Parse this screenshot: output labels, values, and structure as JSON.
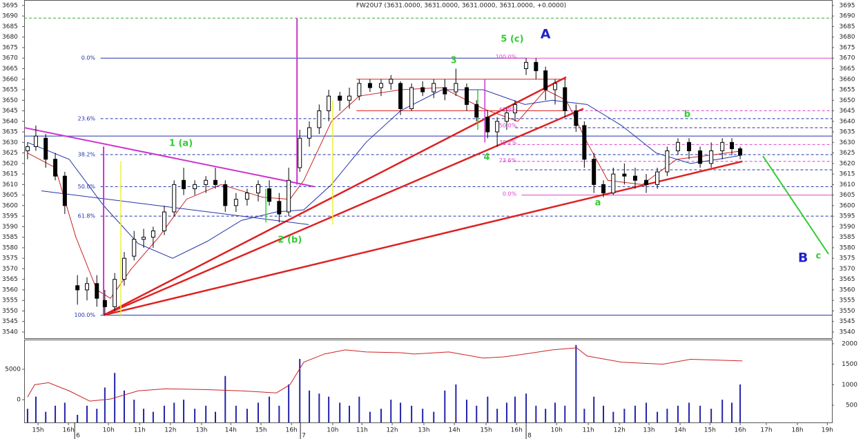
{
  "chart_data": [
    {
      "type": "candlestick",
      "title": "FW20U7 (3631.0000, 3631.0000, 3631.0000, 3631.0000, +0.0000)",
      "xlim": [
        -0.45,
        25.78
      ],
      "ylim": [
        3537.05,
        3697.6
      ],
      "yticks": [
        3540,
        3545,
        3550,
        3555,
        3560,
        3565,
        3570,
        3575,
        3580,
        3585,
        3590,
        3595,
        3600,
        3605,
        3610,
        3615,
        3620,
        3625,
        3630,
        3635,
        3640,
        3645,
        3650,
        3655,
        3660,
        3665,
        3670,
        3675,
        3680,
        3685,
        3690,
        3695
      ],
      "up_color": "#ffffff",
      "down_color": "#000000",
      "x": [
        -0.34,
        -0.07,
        0.25,
        0.56,
        0.87,
        1.28,
        1.59,
        1.91,
        2.17,
        2.49,
        2.8,
        3.12,
        3.43,
        3.74,
        4.1,
        4.42,
        4.73,
        5.09,
        5.45,
        5.76,
        6.08,
        6.43,
        6.79,
        7.15,
        7.51,
        7.83,
        8.14,
        8.5,
        8.81,
        9.13,
        9.44,
        9.8,
        10.11,
        10.43,
        10.78,
        11.14,
        11.46,
        11.77,
        12.13,
        12.49,
        12.85,
        13.21,
        13.57,
        13.92,
        14.24,
        14.6,
        14.91,
        15.22,
        15.49,
        15.85,
        16.17,
        16.48,
        16.79,
        17.11,
        17.47,
        17.74,
        18.05,
        18.36,
        18.68,
        19.04,
        19.39,
        19.75,
        20.11,
        20.43,
        20.78,
        21.14,
        21.5,
        21.86,
        22.22,
        22.53,
        22.8
      ],
      "open": [
        3626,
        3628,
        3632,
        3622,
        3614,
        3562,
        3560,
        3563,
        3555,
        3552,
        3565,
        3576,
        3584,
        3585,
        3588,
        3597,
        3612,
        3608,
        3610,
        3612,
        3610,
        3600,
        3603,
        3606,
        3608,
        3602,
        3597,
        3618,
        3632,
        3637,
        3645,
        3652,
        3650,
        3652,
        3658,
        3656,
        3658,
        3658,
        3646,
        3656,
        3654,
        3656,
        3654,
        3656,
        3648,
        3642,
        3635,
        3640,
        3644,
        3665,
        3668,
        3664,
        3655,
        3656,
        3645,
        3638,
        3622,
        3610,
        3606,
        3615,
        3614,
        3612,
        3610,
        3616,
        3626,
        3630,
        3626,
        3620,
        3626,
        3630,
        3627
      ],
      "high": [
        3630,
        3638,
        3634,
        3625,
        3616,
        3567,
        3566,
        3567,
        3560,
        3568,
        3578,
        3588,
        3589,
        3590,
        3600,
        3612,
        3618,
        3612,
        3614,
        3618,
        3612,
        3606,
        3608,
        3612,
        3612,
        3606,
        3618,
        3636,
        3640,
        3648,
        3655,
        3654,
        3656,
        3660,
        3660,
        3660,
        3662,
        3659,
        3658,
        3659,
        3660,
        3660,
        3665,
        3658,
        3650,
        3645,
        3642,
        3646,
        3650,
        3670,
        3670,
        3666,
        3660,
        3660,
        3648,
        3640,
        3625,
        3612,
        3618,
        3620,
        3618,
        3615,
        3618,
        3628,
        3632,
        3632,
        3628,
        3630,
        3632,
        3632,
        3628
      ],
      "low": [
        3622,
        3626,
        3618,
        3612,
        3596,
        3553,
        3555,
        3552,
        3548,
        3550,
        3562,
        3574,
        3580,
        3580,
        3586,
        3595,
        3605,
        3605,
        3606,
        3608,
        3597,
        3597,
        3600,
        3602,
        3600,
        3592,
        3595,
        3616,
        3628,
        3634,
        3640,
        3645,
        3646,
        3650,
        3654,
        3652,
        3655,
        3643,
        3645,
        3652,
        3651,
        3650,
        3652,
        3645,
        3640,
        3632,
        3628,
        3636,
        3640,
        3662,
        3660,
        3650,
        3648,
        3642,
        3635,
        3618,
        3606,
        3604,
        3605,
        3610,
        3608,
        3606,
        3608,
        3614,
        3624,
        3622,
        3618,
        3618,
        3622,
        3624,
        3622
      ],
      "close": [
        3628,
        3633,
        3622,
        3614,
        3600,
        3560,
        3563,
        3556,
        3552,
        3565,
        3575,
        3584,
        3585,
        3588,
        3597,
        3610,
        3608,
        3610,
        3612,
        3610,
        3600,
        3603,
        3606,
        3610,
        3602,
        3596,
        3612,
        3632,
        3637,
        3645,
        3652,
        3650,
        3652,
        3658,
        3656,
        3658,
        3660,
        3646,
        3656,
        3654,
        3658,
        3653,
        3658,
        3648,
        3642,
        3635,
        3640,
        3644,
        3648,
        3668,
        3664,
        3655,
        3658,
        3645,
        3638,
        3622,
        3610,
        3606,
        3615,
        3614,
        3612,
        3610,
        3616,
        3626,
        3630,
        3626,
        3620,
        3626,
        3630,
        3627,
        3624
      ],
      "overlays": [
        {
          "color": "#cc2222",
          "x": [
            -0.34,
            0.56,
            1.23,
            1.91,
            2.35,
            3.03,
            3.92,
            4.82,
            5.94,
            7.29,
            8.18,
            8.63,
            9.53,
            10.43,
            11.77,
            13.12,
            14.46,
            15.58,
            16.48,
            17.15,
            17.83,
            18.5,
            19.62,
            20.74,
            21.86,
            22.87
          ],
          "values": [
            3625,
            3618,
            3585,
            3560,
            3556,
            3570,
            3585,
            3603,
            3610,
            3604,
            3603,
            3612,
            3640,
            3652,
            3655,
            3656,
            3646,
            3640,
            3655,
            3650,
            3630,
            3612,
            3610,
            3622,
            3624,
            3626
          ]
        },
        {
          "color": "#2233aa",
          "x": [
            -0.34,
            1.01,
            2.13,
            3.25,
            4.37,
            5.49,
            6.61,
            7.74,
            8.63,
            9.53,
            10.65,
            11.77,
            13.12,
            14.46,
            15.81,
            16.7,
            17.83,
            18.95,
            20.07,
            21.19,
            22.09,
            22.87
          ],
          "values": [
            3630,
            3622,
            3600,
            3582,
            3575,
            3583,
            3593,
            3597,
            3598,
            3610,
            3630,
            3645,
            3655,
            3655,
            3648,
            3650,
            3648,
            3638,
            3625,
            3620,
            3622,
            3624
          ]
        }
      ],
      "levels": [
        {
          "y": 3689,
          "x1": -0.45,
          "x2": 25.78,
          "color": "#33aa33",
          "dash": true
        },
        {
          "y": 3670,
          "x1": 2.03,
          "x2": 15.85,
          "color": "#2233aa",
          "dash": false
        },
        {
          "y": 3670,
          "x1": 15.1,
          "x2": 25.78,
          "color": "#dd44cc",
          "dash": false
        },
        {
          "y": 3645,
          "x1": 15.1,
          "x2": 25.78,
          "color": "#dd44cc",
          "dash": true
        },
        {
          "y": 3641.3,
          "x1": 2.03,
          "x2": 25.78,
          "color": "#2233aa",
          "dash": true
        },
        {
          "y": 3637,
          "x1": 15.5,
          "x2": 25.78,
          "color": "#2233aa",
          "dash": true
        },
        {
          "y": 3633,
          "x1": -0.45,
          "x2": 25.78,
          "color": "#2233aa",
          "dash": false
        },
        {
          "y": 3629,
          "x1": 15.1,
          "x2": 25.78,
          "color": "#dd44cc",
          "dash": true
        },
        {
          "y": 3624.2,
          "x1": 2.03,
          "x2": 25.78,
          "color": "#2233aa",
          "dash": true
        },
        {
          "y": 3621,
          "x1": 15.1,
          "x2": 25.78,
          "color": "#dd44cc",
          "dash": true
        },
        {
          "y": 3617,
          "x1": 15.5,
          "x2": 25.78,
          "color": "#2233aa",
          "dash": true
        },
        {
          "y": 3609,
          "x1": 2.03,
          "x2": 25.78,
          "color": "#2233aa",
          "dash": true
        },
        {
          "y": 3605,
          "x1": 15.7,
          "x2": 25.78,
          "color": "#dd44cc",
          "dash": false
        },
        {
          "y": 3595,
          "x1": 2.03,
          "x2": 25.78,
          "color": "#2233aa",
          "dash": true
        },
        {
          "y": 3548,
          "x1": 2.03,
          "x2": 25.78,
          "color": "#2233aa",
          "dash": false
        },
        {
          "y": 3660,
          "x1": 10.34,
          "x2": 17.15,
          "color": "#dd2222",
          "dash": false
        },
        {
          "y": 3645,
          "x1": 10.34,
          "x2": 17.15,
          "color": "#dd2222",
          "dash": false
        }
      ],
      "trendlines": [
        {
          "x1": 2.13,
          "y1": 3548,
          "x2": 17.15,
          "y2": 3661,
          "color": "#dd2222",
          "width": 2.5
        },
        {
          "x1": 2.13,
          "y1": 3548,
          "x2": 17.71,
          "y2": 3646,
          "color": "#dd2222",
          "width": 2.5
        },
        {
          "x1": 2.13,
          "y1": 3548,
          "x2": 22.87,
          "y2": 3621,
          "color": "#dd2222",
          "width": 2.5
        },
        {
          "x1": -0.45,
          "y1": 3637,
          "x2": 8.97,
          "y2": 3609,
          "color": "#cc33cc",
          "width": 2
        },
        {
          "x1": 0.11,
          "y1": 3607,
          "x2": 8.79,
          "y2": 3591,
          "color": "#2233aa",
          "width": 1
        },
        {
          "x1": 23.54,
          "y1": 3623.5,
          "x2": 25.67,
          "y2": 3577,
          "color": "#33cc33",
          "width": 2
        },
        {
          "x1": 2.13,
          "y1": 3548,
          "x2": 2.13,
          "y2": 3628,
          "color": "#cc33cc",
          "width": 2
        },
        {
          "x1": 8.41,
          "y1": 3610,
          "x2": 8.41,
          "y2": 3689,
          "color": "#cc33cc",
          "width": 2
        },
        {
          "x1": 2.69,
          "y1": 3548,
          "x2": 2.69,
          "y2": 3621,
          "color": "#eeee33",
          "width": 1.5
        },
        {
          "x1": 9.57,
          "y1": 3591,
          "x2": 9.57,
          "y2": 3650,
          "color": "#eeee33",
          "width": 1.5
        },
        {
          "x1": 14.28,
          "y1": 3636,
          "x2": 14.28,
          "y2": 3655,
          "color": "#33cc33",
          "width": 1.5
        },
        {
          "x1": 7.4,
          "y1": 3592,
          "x2": 7.4,
          "y2": 3608,
          "color": "#33cc33",
          "width": 1.5
        },
        {
          "x1": 14.51,
          "y1": 3630,
          "x2": 14.51,
          "y2": 3660,
          "color": "#cc33cc",
          "width": 1.5
        }
      ],
      "fib_labels": [
        {
          "text": "0.0%",
          "x": 1.86,
          "y": 3670,
          "color": "#2233aa"
        },
        {
          "text": "23.6%",
          "x": 1.86,
          "y": 3641.3,
          "color": "#2233aa"
        },
        {
          "text": "38.2%",
          "x": 1.86,
          "y": 3624.2,
          "color": "#2233aa"
        },
        {
          "text": "50.0%",
          "x": 1.86,
          "y": 3609,
          "color": "#2233aa"
        },
        {
          "text": "61.8%",
          "x": 1.86,
          "y": 3595,
          "color": "#2233aa"
        },
        {
          "text": "100.0%",
          "x": 1.86,
          "y": 3548,
          "color": "#2233aa"
        },
        {
          "text": "100.0%",
          "x": 15.54,
          "y": 3670.5,
          "color": "#dd44cc"
        },
        {
          "text": "61.8%",
          "x": 15.54,
          "y": 3645.5,
          "color": "#dd44cc"
        },
        {
          "text": "50.0%",
          "x": 15.54,
          "y": 3638,
          "color": "#dd44cc"
        },
        {
          "text": "38.2%",
          "x": 15.54,
          "y": 3630,
          "color": "#dd44cc"
        },
        {
          "text": "23.6%",
          "x": 15.54,
          "y": 3621.5,
          "color": "#dd44cc"
        },
        {
          "text": "0.0%",
          "x": 15.54,
          "y": 3605.5,
          "color": "#dd44cc"
        }
      ],
      "wave_labels": [
        {
          "text": "1 (a)",
          "x": 4.64,
          "y": 3629.4
        },
        {
          "text": "2 (b)",
          "x": 8.18,
          "y": 3583.6
        },
        {
          "text": "3",
          "x": 13.5,
          "y": 3668.8
        },
        {
          "text": "4",
          "x": 14.57,
          "y": 3622.9
        },
        {
          "text": "5 (c)",
          "x": 15.4,
          "y": 3678.9
        },
        {
          "text": "b",
          "x": 21.08,
          "y": 3643.2
        },
        {
          "text": "a",
          "x": 18.18,
          "y": 3601.3
        },
        {
          "text": "c",
          "x": 25.34,
          "y": 3576
        }
      ],
      "wave_color": "#33cc33",
      "major_labels": [
        {
          "text": "A",
          "x": 16.48,
          "y": 3681.2
        },
        {
          "text": "B",
          "x": 24.84,
          "y": 3575
        }
      ],
      "major_color": "#2222cc"
    },
    {
      "type": "bar",
      "ylim": [
        -3750,
        9886
      ],
      "yticks": [
        0,
        5000
      ],
      "y2lim": [
        79,
        2101
      ],
      "y2ticks": [
        500,
        1000,
        1500,
        2000
      ],
      "color": "#2222aa",
      "values": [
        -1500,
        500,
        -2000,
        -1000,
        -500,
        -2500,
        -1000,
        -1500,
        2000,
        4400,
        1500,
        0,
        -1500,
        -2000,
        -1000,
        -500,
        0,
        -1500,
        -1000,
        -2000,
        3900,
        -1000,
        -1500,
        -500,
        500,
        -1000,
        2500,
        6700,
        1500,
        1000,
        500,
        -500,
        -1000,
        500,
        -2000,
        -1500,
        0,
        -500,
        -1000,
        -1500,
        -2000,
        1500,
        2500,
        0,
        -1000,
        500,
        -1500,
        -500,
        500,
        1000,
        -1000,
        -1500,
        -500,
        -1000,
        9000,
        -1500,
        500,
        -1000,
        -2000,
        -1500,
        -1000,
        -500,
        -2000,
        -1500,
        -1000,
        -500,
        -1000,
        -1500,
        0,
        -500,
        2500
      ],
      "series": [
        {
          "axis": "y2",
          "color": "#cc2222",
          "x": [
            -0.34,
            -0.11,
            0.34,
            1.01,
            1.68,
            2.35,
            3.25,
            4.15,
            5.49,
            6.61,
            7.74,
            8.18,
            8.63,
            9.3,
            9.98,
            10.65,
            11.77,
            12.22,
            13.34,
            14.46,
            15.13,
            15.81,
            16.7,
            17.49,
            17.83,
            18.95,
            20.29,
            21.19,
            22.09,
            22.87
          ],
          "values": [
            700,
            1000,
            1050,
            850,
            600,
            650,
            850,
            900,
            880,
            850,
            800,
            1000,
            1550,
            1750,
            1850,
            1800,
            1780,
            1750,
            1800,
            1650,
            1680,
            1750,
            1850,
            1900,
            1700,
            1550,
            1500,
            1620,
            1600,
            1580
          ]
        }
      ],
      "xticks": [
        {
          "value": 0,
          "label": "15h"
        },
        {
          "value": 0.99,
          "label": "16h"
        },
        {
          "value": 2.29,
          "label": "10h"
        },
        {
          "value": 3.3,
          "label": "11h"
        },
        {
          "value": 4.3,
          "label": "12h"
        },
        {
          "value": 5.31,
          "label": "13h"
        },
        {
          "value": 6.26,
          "label": "14h"
        },
        {
          "value": 7.24,
          "label": "15h"
        },
        {
          "value": 8.23,
          "label": "16h"
        },
        {
          "value": 9.57,
          "label": "10h"
        },
        {
          "value": 10.52,
          "label": "11h"
        },
        {
          "value": 11.5,
          "label": "12h"
        },
        {
          "value": 12.53,
          "label": "13h"
        },
        {
          "value": 13.52,
          "label": "14h"
        },
        {
          "value": 14.55,
          "label": "15h"
        },
        {
          "value": 15.54,
          "label": "16h"
        },
        {
          "value": 16.84,
          "label": "10h"
        },
        {
          "value": 17.87,
          "label": "11h"
        },
        {
          "value": 18.88,
          "label": "12h"
        },
        {
          "value": 19.84,
          "label": "13h"
        },
        {
          "value": 20.85,
          "label": "14h"
        },
        {
          "value": 21.82,
          "label": "15h"
        },
        {
          "value": 22.8,
          "label": "16h"
        },
        {
          "value": 23.65,
          "label": "17h"
        },
        {
          "value": 24.66,
          "label": "18h"
        },
        {
          "value": 25.63,
          "label": "19h"
        }
      ],
      "xticks_days": [
        {
          "value": 1.19,
          "label": "6"
        },
        {
          "value": 8.52,
          "label": "7"
        },
        {
          "value": 15.85,
          "label": "8"
        }
      ]
    }
  ]
}
